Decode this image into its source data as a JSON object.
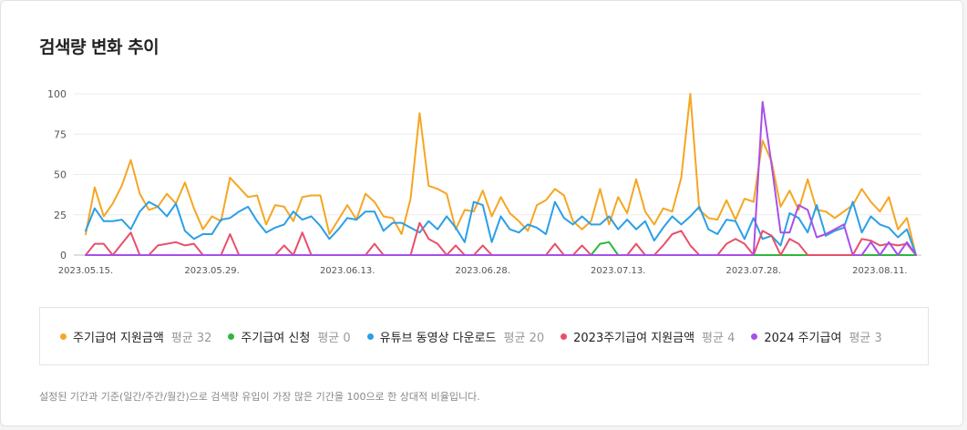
{
  "title": "검색량 변화 추이",
  "note": "설정된 기간과 기준(일간/주간/월간)으로 검색량 유입이 가장 많은 기간을 100으로 한 상대적 비율입니다.",
  "legend": [
    {
      "name": "주기급여 지원금액",
      "avg": "평균 32",
      "color": "#f5a623"
    },
    {
      "name": "주기급여 신청",
      "avg": "평균 0",
      "color": "#2db83d"
    },
    {
      "name": "유튜브 동영상 다운로드",
      "avg": "평균 20",
      "color": "#2b9fe6"
    },
    {
      "name": "2023주기급여 지원금액",
      "avg": "평균 4",
      "color": "#e8506a"
    },
    {
      "name": "2024 주기급여",
      "avg": "평균 3",
      "color": "#a94fe8"
    }
  ],
  "chart_data": {
    "type": "line",
    "title": "검색량 변화 추이",
    "xlabel": "",
    "ylabel": "",
    "ylim": [
      0,
      100
    ],
    "yticks": [
      "0",
      "25",
      "50",
      "75",
      "100"
    ],
    "xticks": [
      {
        "label": "2023.05.15.",
        "index": 0
      },
      {
        "label": "2023.05.29.",
        "index": 14
      },
      {
        "label": "2023.06.13.",
        "index": 29
      },
      {
        "label": "2023.06.28.",
        "index": 44
      },
      {
        "label": "2023.07.13.",
        "index": 59
      },
      {
        "label": "2023.07.28.",
        "index": 74
      },
      {
        "label": "2023.08.11.",
        "index": 88
      }
    ],
    "series": [
      {
        "name": "주기급여 지원금액",
        "color": "#f5a623",
        "values": [
          13,
          42,
          24,
          32,
          43,
          59,
          38,
          28,
          30,
          38,
          32,
          45,
          29,
          16,
          24,
          21,
          48,
          42,
          36,
          37,
          19,
          31,
          30,
          21,
          36,
          37,
          37,
          13,
          22,
          31,
          22,
          38,
          33,
          24,
          23,
          13,
          35,
          88,
          43,
          41,
          38,
          16,
          28,
          27,
          40,
          24,
          36,
          26,
          21,
          15,
          31,
          34,
          41,
          37,
          21,
          16,
          21,
          41,
          19,
          36,
          26,
          47,
          27,
          19,
          29,
          27,
          48,
          100,
          28,
          23,
          22,
          34,
          22,
          35,
          33,
          71,
          58,
          30,
          40,
          28,
          47,
          28,
          27,
          23,
          27,
          31,
          41,
          33,
          27,
          36,
          16,
          23,
          0
        ]
      },
      {
        "name": "주기급여 신청",
        "color": "#2db83d",
        "values": [
          0,
          0,
          0,
          0,
          0,
          0,
          0,
          0,
          0,
          0,
          0,
          0,
          0,
          0,
          0,
          0,
          0,
          0,
          0,
          0,
          0,
          0,
          0,
          0,
          0,
          0,
          0,
          0,
          0,
          0,
          0,
          0,
          0,
          0,
          0,
          0,
          0,
          0,
          0,
          0,
          0,
          0,
          0,
          0,
          0,
          0,
          0,
          0,
          0,
          0,
          0,
          0,
          0,
          0,
          0,
          0,
          0,
          7,
          8,
          0,
          0,
          0,
          0,
          0,
          0,
          0,
          0,
          0,
          0,
          0,
          0,
          0,
          0,
          0,
          0,
          0,
          0,
          0,
          0,
          0,
          0,
          0,
          0,
          0,
          0,
          0,
          0,
          0,
          0,
          0,
          0,
          0,
          0
        ]
      },
      {
        "name": "유튜브 동영상 다운로드",
        "color": "#2b9fe6",
        "values": [
          15,
          29,
          21,
          21,
          22,
          16,
          27,
          33,
          30,
          24,
          32,
          15,
          10,
          13,
          13,
          22,
          23,
          27,
          30,
          21,
          14,
          17,
          19,
          27,
          22,
          24,
          18,
          10,
          16,
          23,
          22,
          27,
          27,
          15,
          20,
          20,
          17,
          14,
          21,
          16,
          24,
          17,
          8,
          33,
          31,
          8,
          24,
          16,
          14,
          19,
          17,
          13,
          33,
          23,
          19,
          24,
          19,
          19,
          24,
          16,
          22,
          16,
          21,
          9,
          17,
          24,
          19,
          24,
          30,
          16,
          13,
          22,
          21,
          10,
          23,
          10,
          12,
          6,
          26,
          23,
          14,
          31,
          12,
          15,
          17,
          33,
          14,
          24,
          19,
          17,
          11,
          16,
          0
        ]
      },
      {
        "name": "2023주기급여 지원금액",
        "color": "#e8506a",
        "values": [
          0,
          7,
          7,
          0,
          7,
          14,
          0,
          0,
          6,
          7,
          8,
          6,
          7,
          0,
          0,
          0,
          13,
          0,
          0,
          0,
          0,
          0,
          6,
          0,
          14,
          0,
          0,
          0,
          0,
          0,
          0,
          0,
          7,
          0,
          0,
          0,
          0,
          20,
          10,
          7,
          0,
          6,
          0,
          0,
          6,
          0,
          0,
          0,
          0,
          0,
          0,
          0,
          7,
          0,
          0,
          6,
          0,
          0,
          0,
          0,
          0,
          7,
          0,
          0,
          6,
          13,
          15,
          6,
          0,
          0,
          0,
          7,
          10,
          7,
          0,
          15,
          12,
          0,
          10,
          7,
          0,
          0,
          0,
          0,
          0,
          0,
          10,
          9,
          6,
          7,
          6,
          7,
          0
        ]
      },
      {
        "name": "2024 주기급여",
        "color": "#a94fe8",
        "values": [
          0,
          0,
          0,
          0,
          0,
          0,
          0,
          0,
          0,
          0,
          0,
          0,
          0,
          0,
          0,
          0,
          0,
          0,
          0,
          0,
          0,
          0,
          0,
          0,
          0,
          0,
          0,
          0,
          0,
          0,
          0,
          0,
          0,
          0,
          0,
          0,
          0,
          0,
          0,
          0,
          0,
          0,
          0,
          0,
          0,
          0,
          0,
          0,
          0,
          0,
          0,
          0,
          0,
          0,
          0,
          0,
          0,
          0,
          0,
          0,
          0,
          0,
          0,
          0,
          0,
          0,
          0,
          0,
          0,
          0,
          0,
          0,
          0,
          0,
          0,
          95,
          56,
          14,
          14,
          31,
          28,
          11,
          13,
          16,
          19,
          0,
          0,
          8,
          0,
          8,
          0,
          8,
          0
        ]
      }
    ]
  }
}
